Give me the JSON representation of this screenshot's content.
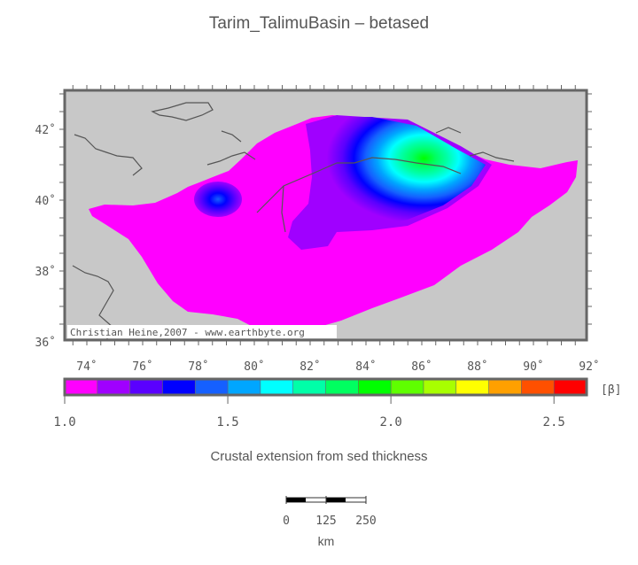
{
  "title": "Tarim_TalimuBasin – betased",
  "map": {
    "lat_ticks": [
      "42˚",
      "40˚",
      "38˚",
      "36˚"
    ],
    "lon_ticks": [
      "74˚",
      "76˚",
      "78˚",
      "80˚",
      "82˚",
      "84˚",
      "86˚",
      "88˚",
      "90˚",
      "92˚"
    ],
    "credit": "Christian Heine,2007 - www.earthbyte.org",
    "colors": {
      "ocean": "#c8c8c8",
      "frame": "#666666",
      "basin_base": "#ff00ff"
    }
  },
  "colorbar": {
    "colors": [
      "#ff00ff",
      "#a000ff",
      "#5a00ff",
      "#0000ff",
      "#1560ff",
      "#00a6ff",
      "#00ffff",
      "#00ffa8",
      "#00ff60",
      "#00ff00",
      "#5fff00",
      "#a8ff00",
      "#ffff00",
      "#ffa000",
      "#ff5000",
      "#ff0000"
    ],
    "tick_labels": [
      "1.0",
      "1.5",
      "2.0",
      "2.5"
    ],
    "unit": "[β]"
  },
  "caption": "Crustal extension from sed thickness",
  "scalebar": {
    "labels": [
      "0",
      "125",
      "250"
    ],
    "unit": "km"
  }
}
